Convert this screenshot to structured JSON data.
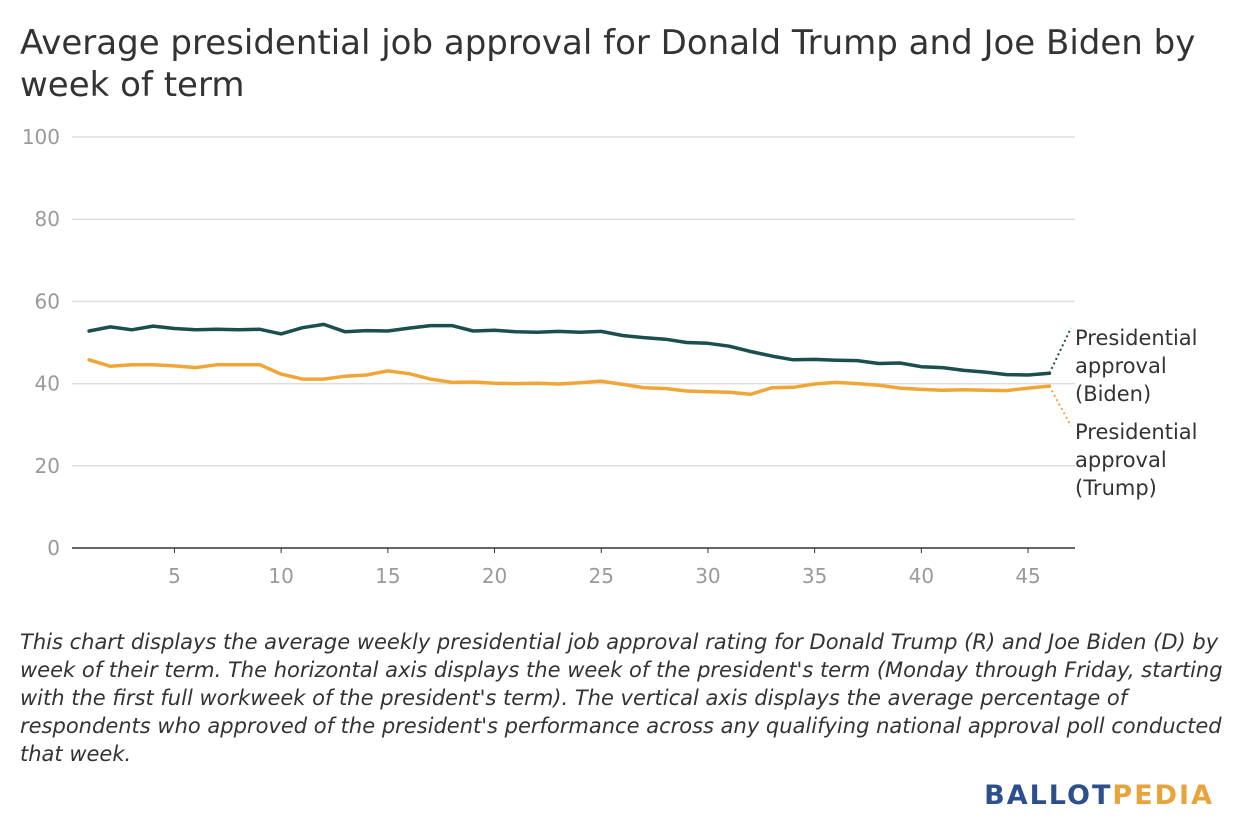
{
  "title": "Average presidential job approval for Donald Trump and Joe Biden by week of term",
  "caption": "This chart displays the average weekly presidential job approval rating for Donald Trump (R) and Joe Biden (D) by week of their term. The horizontal axis displays the week of the president's term (Monday through Friday, starting with the first full workweek of the president's term). The vertical axis displays the average percentage of respondents who approved of the president's performance across any qualifying national approval poll conducted that week.",
  "logo": {
    "part1": "BALLOT",
    "part2": "PEDIA",
    "color1": "#2d4f8e",
    "color2": "#e8a33a"
  },
  "chart_data": {
    "type": "line",
    "title": "Average presidential job approval for Donald Trump and Joe Biden by week of term",
    "xlabel": "",
    "ylabel": "",
    "xlim": [
      0.2,
      47.2
    ],
    "ylim": [
      0,
      100
    ],
    "xticks": [
      5,
      10,
      15,
      20,
      25,
      30,
      35,
      40,
      45
    ],
    "yticks": [
      0,
      20,
      40,
      60,
      80,
      100
    ],
    "grid": true,
    "legend": "direct-labels-right",
    "x": [
      1,
      2,
      3,
      4,
      5,
      6,
      7,
      8,
      9,
      10,
      11,
      12,
      13,
      14,
      15,
      16,
      17,
      18,
      19,
      20,
      21,
      22,
      23,
      24,
      25,
      26,
      27,
      28,
      29,
      30,
      31,
      32,
      33,
      34,
      35,
      36,
      37,
      38,
      39,
      40,
      41,
      42,
      43,
      44,
      45,
      46
    ],
    "series": [
      {
        "name": "Presidential approval (Biden)",
        "label_lines": [
          "Presidential",
          "approval",
          "(Biden)"
        ],
        "color": "#1b4f4e",
        "values": [
          52.8,
          53.8,
          53.1,
          54.0,
          53.4,
          53.1,
          53.2,
          53.1,
          53.2,
          52.1,
          53.6,
          54.4,
          52.6,
          52.9,
          52.8,
          53.5,
          54.1,
          54.1,
          52.8,
          53.0,
          52.6,
          52.5,
          52.7,
          52.5,
          52.7,
          51.7,
          51.2,
          50.8,
          50.0,
          49.8,
          49.1,
          47.8,
          46.7,
          45.8,
          45.9,
          45.7,
          45.6,
          44.9,
          45.0,
          44.1,
          43.9,
          43.2,
          42.8,
          42.2,
          42.1,
          42.5
        ]
      },
      {
        "name": "Presidential approval (Trump)",
        "label_lines": [
          "Presidential",
          "approval",
          "(Trump)"
        ],
        "color": "#f0a637",
        "values": [
          45.8,
          44.2,
          44.6,
          44.6,
          44.3,
          43.9,
          44.6,
          44.6,
          44.6,
          42.3,
          41.1,
          41.1,
          41.8,
          42.1,
          43.1,
          42.4,
          41.1,
          40.3,
          40.4,
          40.1,
          40.0,
          40.1,
          39.9,
          40.2,
          40.6,
          39.8,
          39.0,
          38.8,
          38.2,
          38.0,
          37.9,
          37.4,
          39.0,
          39.1,
          39.9,
          40.3,
          40.0,
          39.6,
          38.9,
          38.6,
          38.4,
          38.5,
          38.4,
          38.3,
          38.9,
          39.4
        ]
      }
    ]
  }
}
